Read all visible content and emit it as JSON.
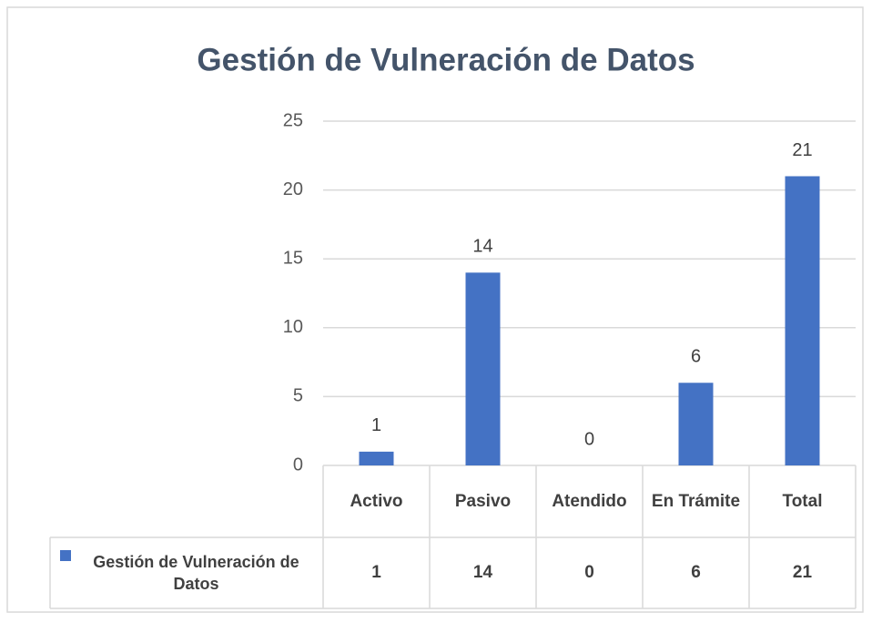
{
  "chart_data": {
    "type": "bar",
    "title": "Gestión de Vulneración de Datos",
    "categories": [
      "Activo",
      "Pasivo",
      "Atendido",
      "En Trámite",
      "Total"
    ],
    "series": [
      {
        "name": "Gestión de Vulneración de Datos",
        "color": "#4472c4",
        "values": [
          1,
          14,
          0,
          6,
          21
        ]
      }
    ],
    "ylim": [
      0,
      25
    ],
    "yticks": [
      0,
      5,
      10,
      15,
      20,
      25
    ],
    "grid": true,
    "data_table": true
  }
}
